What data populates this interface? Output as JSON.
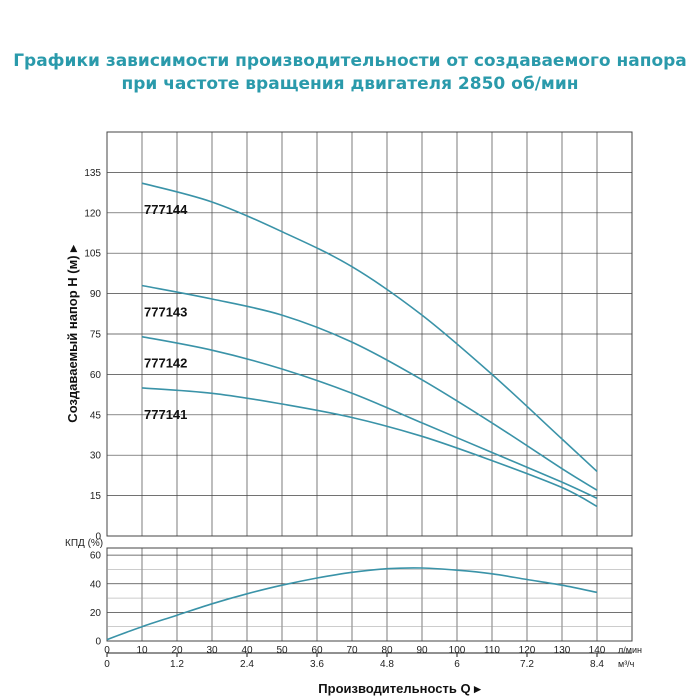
{
  "title": {
    "line1": "Графики зависимости производительности от создаваемого напора",
    "line2": "при частоте вращения двигателя 2850 об/мин"
  },
  "colors": {
    "curve": "#3a93a8",
    "title": "#2a9aab",
    "grid": "#444444"
  },
  "chart_data": [
    {
      "type": "line",
      "ylabel": "Создаваемый напор H (м)",
      "ylim": [
        0,
        150
      ],
      "yticks": [
        "0",
        "15",
        "30",
        "45",
        "60",
        "75",
        "90",
        "105",
        "120",
        "135"
      ],
      "xlim": [
        0,
        150
      ],
      "grid": true,
      "series": [
        {
          "name": "777144",
          "x": [
            10,
            30,
            50,
            70,
            90,
            110,
            130,
            140
          ],
          "values": [
            131,
            124,
            113,
            100,
            82,
            60,
            36,
            24
          ]
        },
        {
          "name": "777143",
          "x": [
            10,
            30,
            50,
            70,
            90,
            110,
            130,
            140
          ],
          "values": [
            93,
            88,
            82,
            72,
            58,
            42,
            25,
            17
          ]
        },
        {
          "name": "777142",
          "x": [
            10,
            30,
            50,
            70,
            90,
            110,
            130,
            140
          ],
          "values": [
            74,
            69,
            62,
            53,
            42,
            31,
            20,
            14
          ]
        },
        {
          "name": "777141",
          "x": [
            10,
            30,
            50,
            70,
            90,
            110,
            130,
            140
          ],
          "values": [
            55,
            53,
            49,
            44,
            37,
            28,
            18,
            11
          ]
        }
      ]
    },
    {
      "type": "line",
      "ylabel": "КПД (%)",
      "ylim": [
        0,
        65
      ],
      "yticks": [
        "0",
        "20",
        "40",
        "60"
      ],
      "xlim": [
        0,
        150
      ],
      "xticks_lmin": [
        "0",
        "10",
        "20",
        "30",
        "40",
        "50",
        "60",
        "70",
        "80",
        "90",
        "100",
        "110",
        "120",
        "130",
        "140"
      ],
      "xunit_lmin": "л/мин",
      "xticks_m3h": [
        "0",
        "1.2",
        "2.4",
        "3.6",
        "4.8",
        "6",
        "7.2",
        "8.4"
      ],
      "xunit_m3h": "м³/ч",
      "xlabel": "Производительность Q",
      "grid": true,
      "series": [
        {
          "name": "",
          "x": [
            0,
            10,
            20,
            30,
            40,
            50,
            60,
            70,
            80,
            90,
            100,
            110,
            120,
            130,
            140
          ],
          "values": [
            1,
            10,
            18,
            26,
            33,
            39,
            44,
            48,
            50.5,
            51,
            49.5,
            47,
            43,
            39,
            34
          ]
        }
      ]
    }
  ]
}
